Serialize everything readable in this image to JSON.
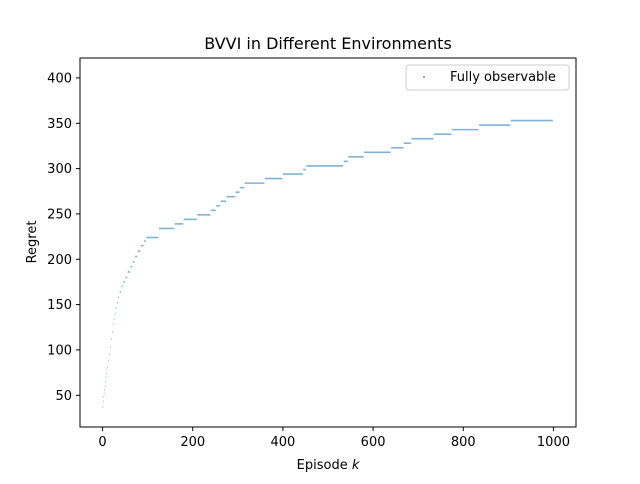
{
  "chart_data": {
    "type": "scatter",
    "title": "BVVI in Different Environments",
    "xlabel": "Episode ",
    "xlabel_var": "k",
    "ylabel": "Regret",
    "xlim": [
      -50,
      1050
    ],
    "ylim": [
      15,
      422
    ],
    "xticks": [
      0,
      200,
      400,
      600,
      800,
      1000
    ],
    "yticks": [
      50,
      100,
      150,
      200,
      250,
      300,
      350,
      400
    ],
    "legend_position": "top-right",
    "grid": false,
    "series": [
      {
        "name": "Fully observable",
        "color": "#1f77b4",
        "segments": [
          [
            0,
            37
          ],
          [
            1,
            43
          ],
          [
            2,
            48
          ],
          [
            3,
            52
          ],
          [
            4,
            56
          ],
          [
            5,
            60
          ],
          [
            6,
            65
          ],
          [
            7,
            70
          ],
          [
            8,
            74
          ],
          [
            9,
            78
          ],
          [
            11,
            81
          ],
          [
            13,
            88
          ],
          [
            15,
            95
          ],
          [
            17,
            103
          ],
          [
            19,
            112
          ],
          [
            21,
            120
          ],
          [
            23,
            128
          ],
          [
            25,
            134
          ],
          [
            27,
            140
          ],
          [
            29,
            146
          ],
          [
            32,
            152
          ],
          [
            35,
            158
          ],
          [
            38,
            164
          ],
          [
            42,
            170
          ],
          [
            46,
            175
          ],
          [
            51,
            180
          ],
          [
            56,
            186
          ],
          [
            62,
            192
          ],
          [
            67,
            197
          ],
          [
            72,
            203
          ],
          [
            78,
            209
          ],
          [
            85,
            215
          ],
          [
            92,
            220
          ],
          [
            97,
            224
          ],
          [
            125,
            234
          ],
          [
            160,
            239
          ],
          [
            180,
            244
          ],
          [
            210,
            249
          ],
          [
            240,
            254
          ],
          [
            252,
            259
          ],
          [
            262,
            264
          ],
          [
            275,
            269
          ],
          [
            295,
            274
          ],
          [
            305,
            279
          ],
          [
            315,
            284
          ],
          [
            360,
            289
          ],
          [
            400,
            294
          ],
          [
            445,
            299
          ],
          [
            452,
            303
          ],
          [
            535,
            308
          ],
          [
            545,
            313
          ],
          [
            580,
            318
          ],
          [
            640,
            323
          ],
          [
            668,
            328
          ],
          [
            685,
            333
          ],
          [
            735,
            338
          ],
          [
            775,
            343
          ],
          [
            835,
            348
          ],
          [
            905,
            353
          ],
          [
            1000,
            353
          ]
        ]
      }
    ]
  }
}
